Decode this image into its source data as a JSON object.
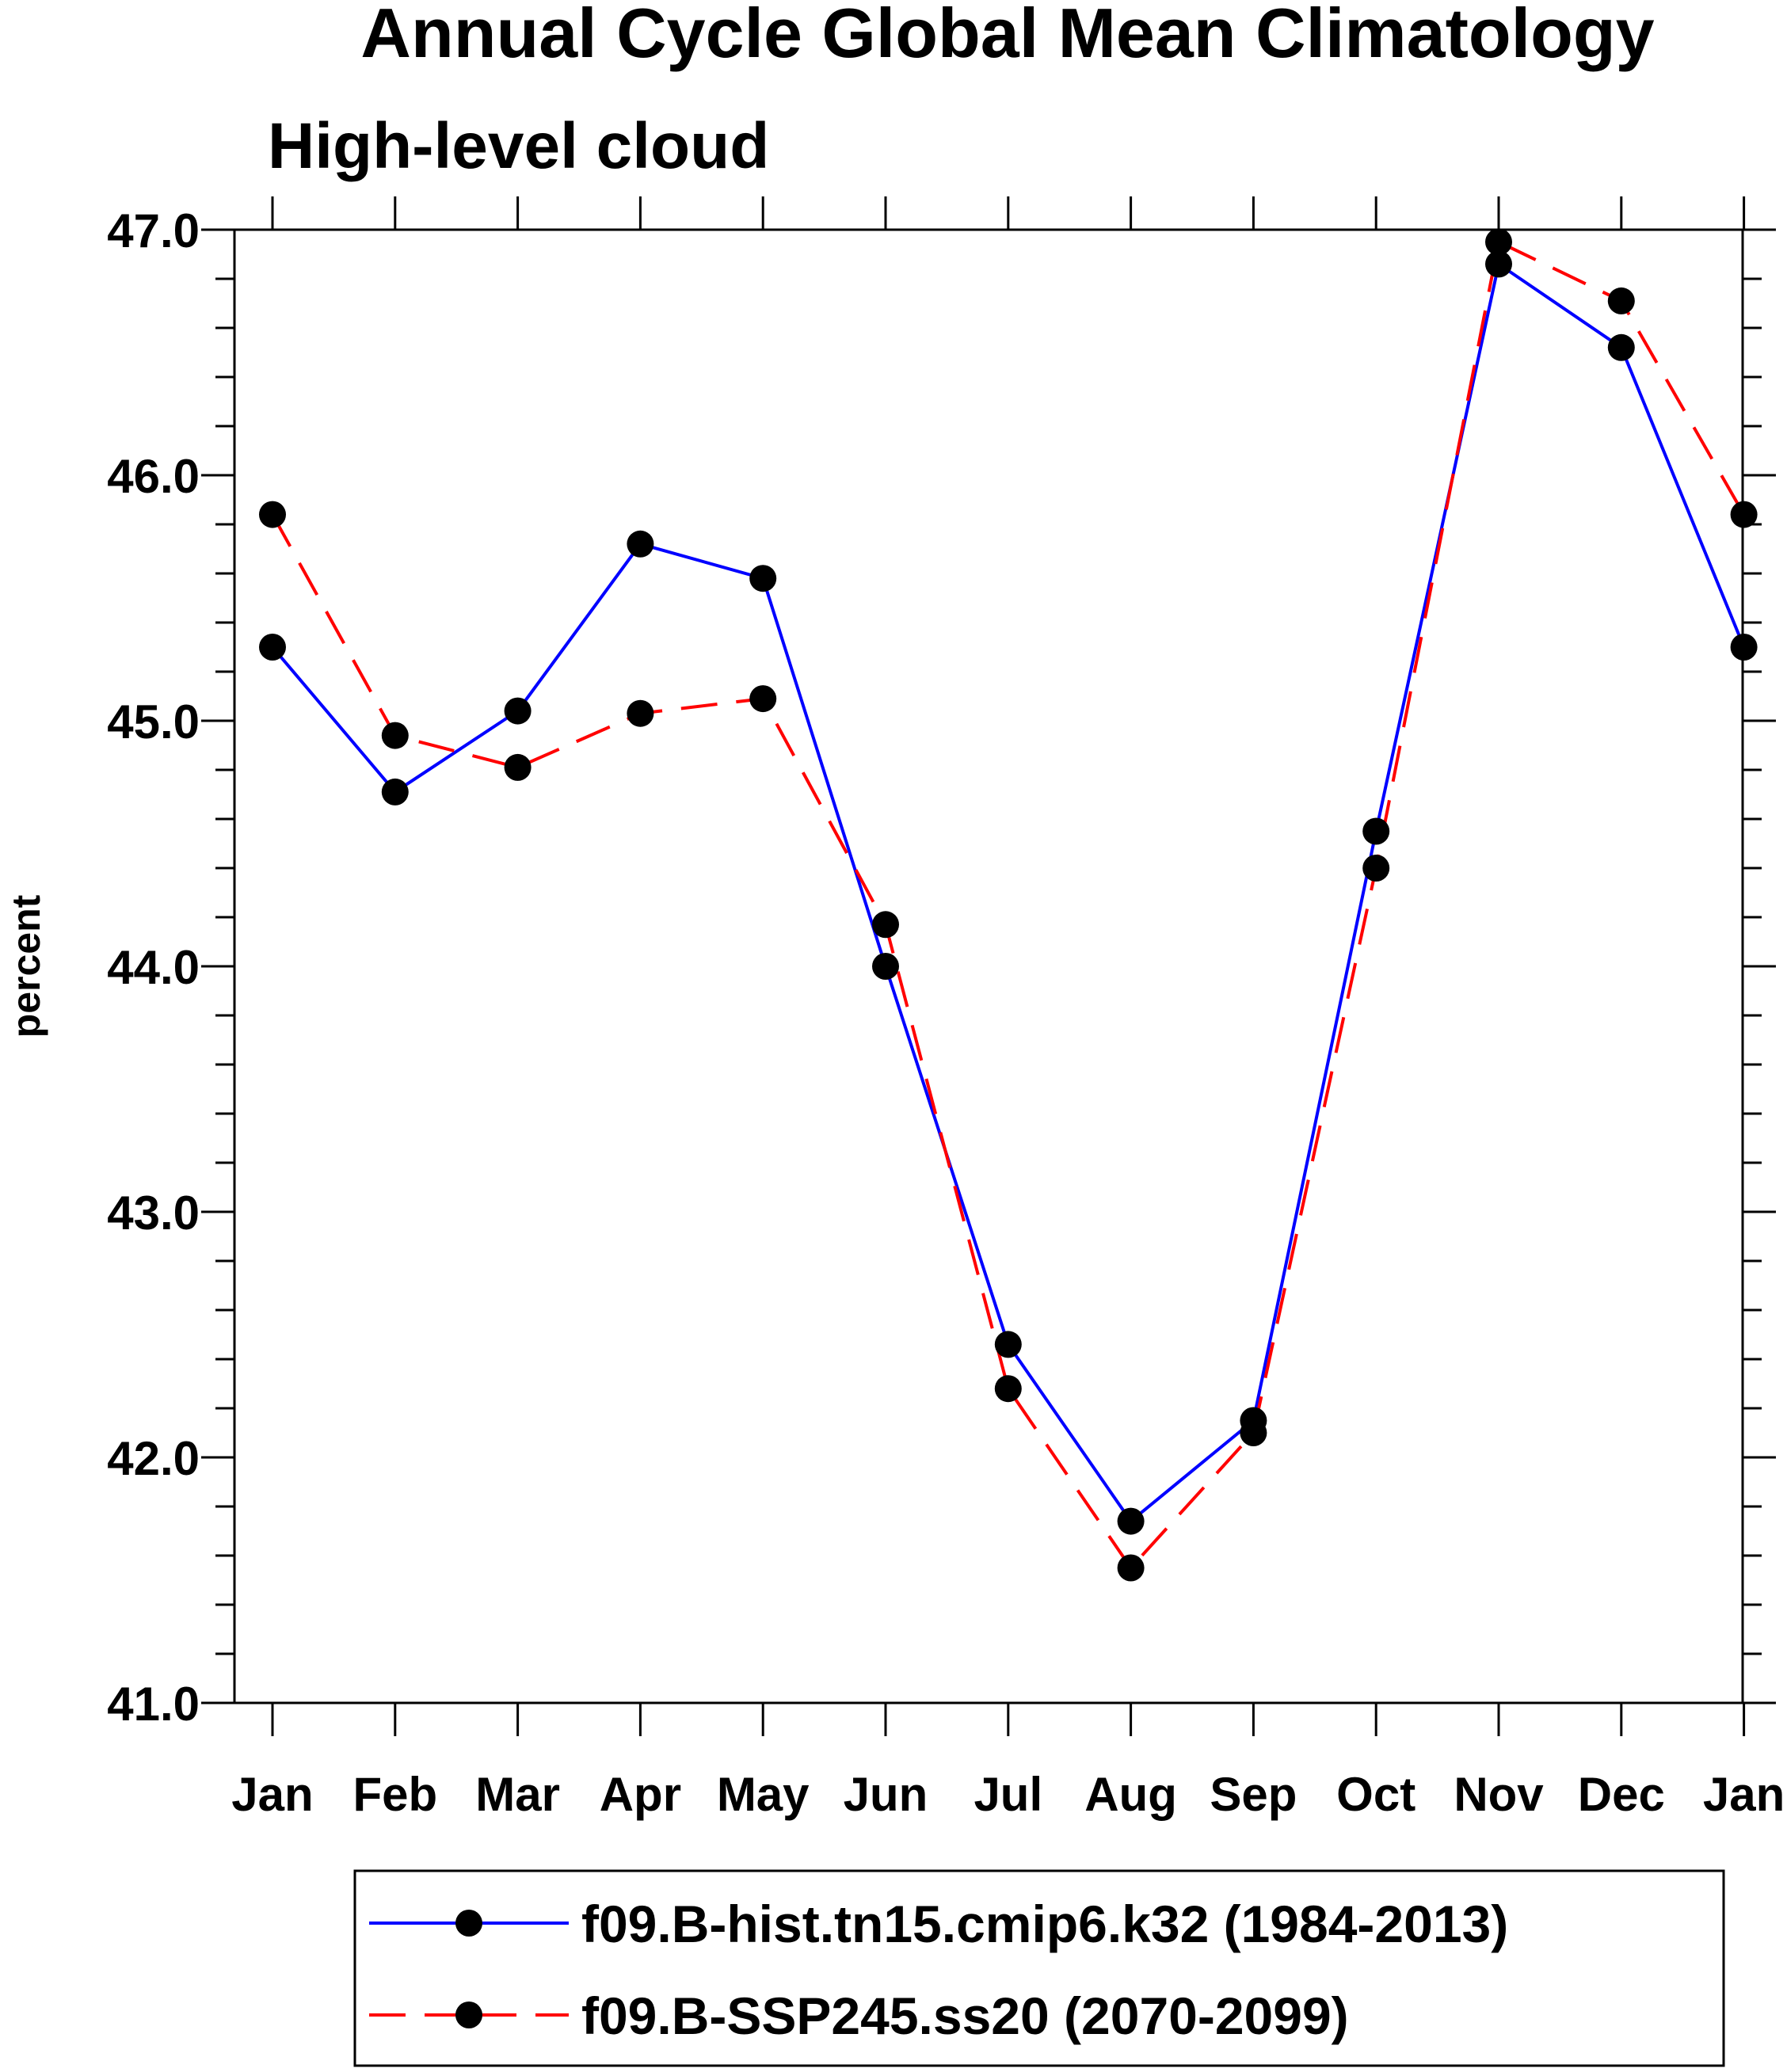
{
  "chart_data": {
    "type": "line",
    "title": "Annual Cycle Global Mean Climatology",
    "subtitle": "High-level cloud",
    "xlabel": "",
    "ylabel": "percent",
    "categories": [
      "Jan",
      "Feb",
      "Mar",
      "Apr",
      "May",
      "Jun",
      "Jul",
      "Aug",
      "Sep",
      "Oct",
      "Nov",
      "Dec",
      "Jan"
    ],
    "ylim": [
      41.0,
      47.0
    ],
    "yticks": [
      "41.0",
      "42.0",
      "43.0",
      "44.0",
      "45.0",
      "46.0",
      "47.0"
    ],
    "grid": false,
    "legend_position": "bottom",
    "series": [
      {
        "name": "f09.B-hist.tn15.cmip6.k32 (1984-2013)",
        "color": "#0000ff",
        "dash": "solid",
        "values": [
          45.3,
          44.71,
          45.04,
          45.72,
          45.58,
          44.0,
          42.46,
          41.74,
          42.15,
          44.55,
          46.86,
          46.52,
          45.3
        ]
      },
      {
        "name": "f09.B-SSP245.ss20 (2070-2099)",
        "color": "#ff0000",
        "dash": "dashed",
        "values": [
          45.84,
          44.94,
          44.81,
          45.03,
          45.09,
          44.17,
          42.28,
          41.55,
          42.1,
          44.4,
          46.95,
          46.71,
          45.84
        ]
      }
    ]
  }
}
